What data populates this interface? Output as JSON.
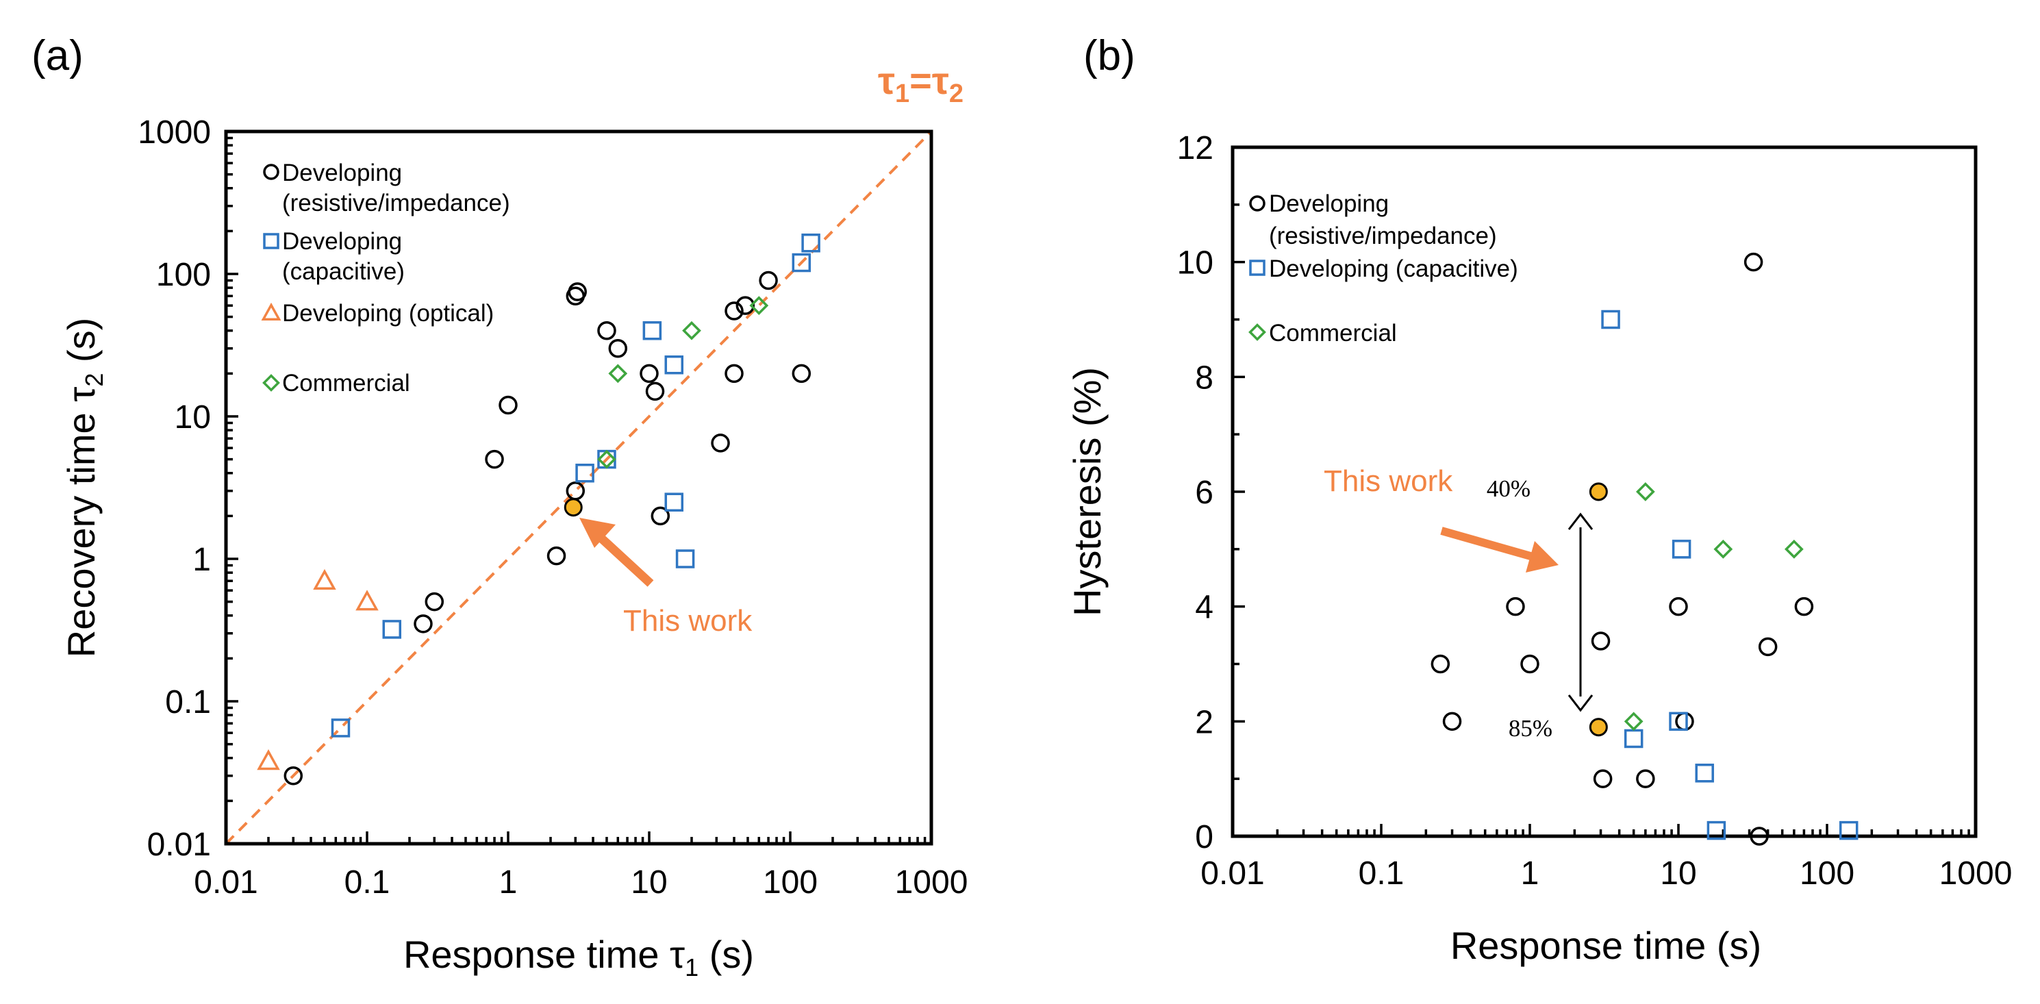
{
  "colors": {
    "developing_resistive": "#000000",
    "developing_capacitive": "#2F76C2",
    "developing_optical": "#F28444",
    "commercial": "#3EA53E",
    "this_work_fill": "#F5B324",
    "this_work_annotation": "#F28444",
    "diagonal_line": "#F28444"
  },
  "chart_data": [
    {
      "panel": "(a)",
      "type": "scatter",
      "xscale": "log",
      "yscale": "log",
      "xlabel_main": "Response time τ",
      "xlabel_sub": "1",
      "xlabel_unit": " (s)",
      "ylabel_main": "Recovery time τ",
      "ylabel_sub": "2",
      "ylabel_unit": " (s)",
      "xlim": [
        0.01,
        1000
      ],
      "ylim": [
        0.01,
        1000
      ],
      "xticks": [
        0.01,
        0.1,
        1,
        10,
        100,
        1000
      ],
      "yticks": [
        0.01,
        0.1,
        1,
        10,
        100,
        1000
      ],
      "xtick_labels": [
        "0.01",
        "0.1",
        "1",
        "10",
        "100",
        "1000"
      ],
      "ytick_labels": [
        "0.01",
        "0.1",
        "1",
        "10",
        "100",
        "1000"
      ],
      "legend_position": "top-left",
      "diagonal_label": {
        "tau": "τ",
        "left_sub": "1",
        "equals": "=",
        "right_sub": "2"
      },
      "annotation": "This work",
      "series": [
        {
          "name": "Developing (resistive/impedance)",
          "legend_lines": [
            "Developing",
            "(resistive/impedance)"
          ],
          "marker": "circle",
          "color_key": "developing_resistive",
          "points": [
            [
              0.03,
              0.03
            ],
            [
              0.25,
              0.35
            ],
            [
              0.3,
              0.5
            ],
            [
              0.8,
              5
            ],
            [
              1.0,
              12
            ],
            [
              2.2,
              1.05
            ],
            [
              3.0,
              3.0
            ],
            [
              3.0,
              70
            ],
            [
              3.1,
              75
            ],
            [
              5.0,
              40
            ],
            [
              6.0,
              30
            ],
            [
              10.0,
              20
            ],
            [
              11.0,
              15
            ],
            [
              12.0,
              2.0
            ],
            [
              32.0,
              6.5
            ],
            [
              40.0,
              20
            ],
            [
              40.0,
              55
            ],
            [
              48.0,
              60
            ],
            [
              70.0,
              90
            ],
            [
              120.0,
              20
            ]
          ]
        },
        {
          "name": "Developing (capacitive)",
          "legend_lines": [
            "Developing",
            "(capacitive)"
          ],
          "marker": "square",
          "color_key": "developing_capacitive",
          "points": [
            [
              0.065,
              0.065
            ],
            [
              0.15,
              0.32
            ],
            [
              3.5,
              4.0
            ],
            [
              5.0,
              5.0
            ],
            [
              10.5,
              40
            ],
            [
              15.0,
              2.5
            ],
            [
              15.0,
              23
            ],
            [
              18.0,
              1.0
            ],
            [
              120.0,
              120
            ],
            [
              140.0,
              165
            ]
          ]
        },
        {
          "name": "Developing (optical)",
          "legend_lines": [
            "Developing (optical)"
          ],
          "marker": "triangle",
          "color_key": "developing_optical",
          "points": [
            [
              0.02,
              0.038
            ],
            [
              0.05,
              0.7
            ],
            [
              0.1,
              0.5
            ]
          ]
        },
        {
          "name": "Commercial",
          "legend_lines": [
            "Commercial"
          ],
          "marker": "diamond",
          "color_key": "commercial",
          "points": [
            [
              5.0,
              5.0
            ],
            [
              6.0,
              20
            ],
            [
              20.0,
              40
            ],
            [
              60.0,
              60
            ]
          ]
        },
        {
          "name": "This work",
          "marker": "filled-circle",
          "color_key": "this_work_fill",
          "points": [
            [
              2.9,
              2.3
            ]
          ]
        }
      ]
    },
    {
      "panel": "(b)",
      "type": "scatter",
      "xscale": "log",
      "yscale": "linear",
      "xlabel": "Response time (s)",
      "ylabel": "Hysteresis (%)",
      "xlim": [
        0.01,
        1000
      ],
      "ylim": [
        0,
        12
      ],
      "xticks": [
        0.01,
        0.1,
        1,
        10,
        100,
        1000
      ],
      "yticks": [
        0,
        2,
        4,
        6,
        8,
        10,
        12
      ],
      "xtick_labels": [
        "0.01",
        "0.1",
        "1",
        "10",
        "100",
        "1000"
      ],
      "ytick_labels": [
        "0",
        "2",
        "4",
        "6",
        "8",
        "10",
        "12"
      ],
      "legend_position": "top-left",
      "annotation": "This work",
      "percent_labels": [
        "40%",
        "85%"
      ],
      "series": [
        {
          "name": "Developing (resistive/impedance)",
          "legend_lines": [
            "Developing",
            "(resistive/impedance)"
          ],
          "marker": "circle",
          "color_key": "developing_resistive",
          "points": [
            [
              0.25,
              3.0
            ],
            [
              0.3,
              2.0
            ],
            [
              0.8,
              4.0
            ],
            [
              1.0,
              3.0
            ],
            [
              3.0,
              3.4
            ],
            [
              3.1,
              1.0
            ],
            [
              6.0,
              1.0
            ],
            [
              10.0,
              4.0
            ],
            [
              11.0,
              2.0
            ],
            [
              32.0,
              10.0
            ],
            [
              35.0,
              0.0
            ],
            [
              40.0,
              3.3
            ],
            [
              70.0,
              4.0
            ]
          ]
        },
        {
          "name": "Developing (capacitive)",
          "legend_lines": [
            "Developing (capacitive)"
          ],
          "marker": "square",
          "color_key": "developing_capacitive",
          "points": [
            [
              3.5,
              9.0
            ],
            [
              5.0,
              1.7
            ],
            [
              10.0,
              2.0
            ],
            [
              10.5,
              5.0
            ],
            [
              15.0,
              1.1
            ],
            [
              18.0,
              0.1
            ],
            [
              140.0,
              0.1
            ]
          ]
        },
        {
          "name": "Commercial",
          "legend_lines": [
            "Commercial"
          ],
          "marker": "diamond",
          "color_key": "commercial",
          "points": [
            [
              5.0,
              2.0
            ],
            [
              6.0,
              6.0
            ],
            [
              20.0,
              5.0
            ],
            [
              60.0,
              5.0
            ]
          ]
        },
        {
          "name": "This work",
          "marker": "filled-circle",
          "color_key": "this_work_fill",
          "points": [
            [
              2.9,
              6.0
            ],
            [
              2.9,
              1.9
            ]
          ]
        }
      ]
    }
  ]
}
